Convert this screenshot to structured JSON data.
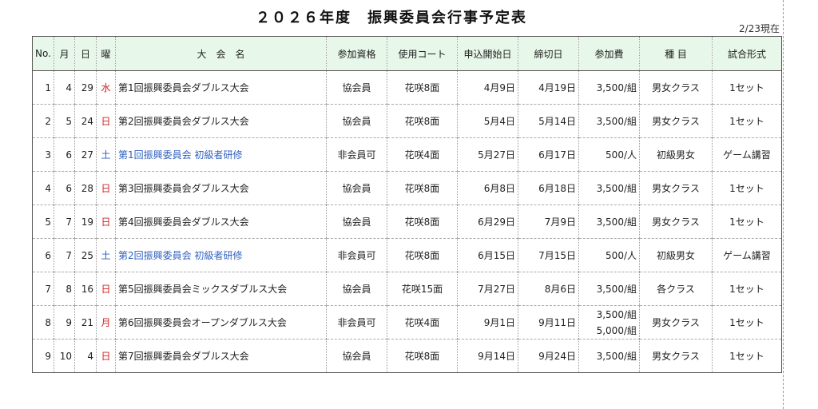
{
  "title": "２０２６年度　振興委員会行事予定表",
  "as_of": "2/23現在",
  "headers": {
    "no": "No.",
    "month": "月",
    "day": "日",
    "dow": "曜",
    "name": "大　会　名",
    "eligibility": "参加資格",
    "court": "使用コート",
    "entry_start": "申込開始日",
    "deadline": "締切日",
    "fee": "参加費",
    "category": "種 目",
    "format": "試合形式"
  },
  "colors": {
    "weekday_red": "#d42020",
    "saturday_blue": "#2f5fbf",
    "header_bg": "#e7f7e9"
  },
  "rows": [
    {
      "no": "1",
      "month": "4",
      "day": "29",
      "dow": "水",
      "name": "第1回振興委員会ダブルス大会",
      "eligibility": "協会員",
      "court": "花咲8面",
      "entry_start": "4月9日",
      "deadline": "4月19日",
      "fee": "3,500/組",
      "fee2": "",
      "category": "男女クラス",
      "format": "1セット"
    },
    {
      "no": "2",
      "month": "5",
      "day": "24",
      "dow": "日",
      "name": "第2回振興委員会ダブルス大会",
      "eligibility": "協会員",
      "court": "花咲8面",
      "entry_start": "5月4日",
      "deadline": "5月14日",
      "fee": "3,500/組",
      "fee2": "",
      "category": "男女クラス",
      "format": "1セット"
    },
    {
      "no": "3",
      "month": "6",
      "day": "27",
      "dow": "土",
      "name": "第1回振興委員会 初級者研修",
      "eligibility": "非会員可",
      "court": "花咲4面",
      "entry_start": "5月27日",
      "deadline": "6月17日",
      "fee": "500/人",
      "fee2": "",
      "category": "初級男女",
      "format": "ゲーム講習"
    },
    {
      "no": "4",
      "month": "6",
      "day": "28",
      "dow": "日",
      "name": "第3回振興委員会ダブルス大会",
      "eligibility": "協会員",
      "court": "花咲8面",
      "entry_start": "6月8日",
      "deadline": "6月18日",
      "fee": "3,500/組",
      "fee2": "",
      "category": "男女クラス",
      "format": "1セット"
    },
    {
      "no": "5",
      "month": "7",
      "day": "19",
      "dow": "日",
      "name": "第4回振興委員会ダブルス大会",
      "eligibility": "協会員",
      "court": "花咲8面",
      "entry_start": "6月29日",
      "deadline": "7月9日",
      "fee": "3,500/組",
      "fee2": "",
      "category": "男女クラス",
      "format": "1セット"
    },
    {
      "no": "6",
      "month": "7",
      "day": "25",
      "dow": "土",
      "name": "第2回振興委員会 初級者研修",
      "eligibility": "非会員可",
      "court": "花咲8面",
      "entry_start": "6月15日",
      "deadline": "7月15日",
      "fee": "500/人",
      "fee2": "",
      "category": "初級男女",
      "format": "ゲーム講習"
    },
    {
      "no": "7",
      "month": "8",
      "day": "16",
      "dow": "日",
      "name": "第5回振興委員会ミックスダブルス大会",
      "eligibility": "協会員",
      "court": "花咲15面",
      "entry_start": "7月27日",
      "deadline": "8月6日",
      "fee": "3,500/組",
      "fee2": "",
      "category": "各クラス",
      "format": "1セット"
    },
    {
      "no": "8",
      "month": "9",
      "day": "21",
      "dow": "月",
      "name": "第6回振興委員会オープンダブルス大会",
      "eligibility": "非会員可",
      "court": "花咲4面",
      "entry_start": "9月1日",
      "deadline": "9月11日",
      "fee": "3,500/組",
      "fee2": "5,000/組",
      "category": "男女クラス",
      "format": "1セット"
    },
    {
      "no": "9",
      "month": "10",
      "day": "4",
      "dow": "日",
      "name": "第7回振興委員会ダブルス大会",
      "eligibility": "協会員",
      "court": "花咲8面",
      "entry_start": "9月14日",
      "deadline": "9月24日",
      "fee": "3,500/組",
      "fee2": "",
      "category": "男女クラス",
      "format": "1セット"
    }
  ]
}
